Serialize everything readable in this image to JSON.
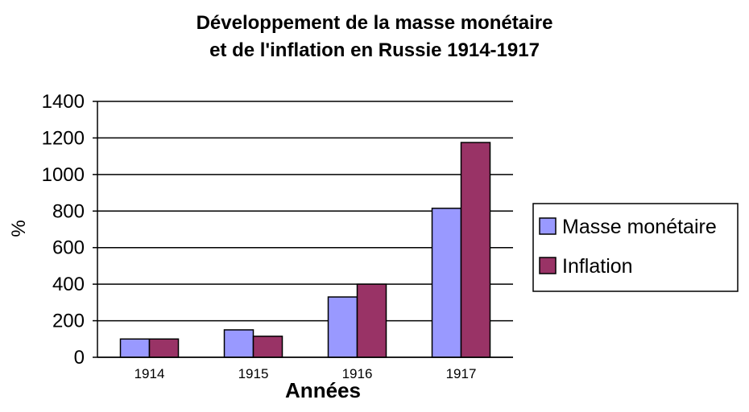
{
  "chart_data": {
    "type": "bar",
    "title": [
      "Développement de la masse monétaire",
      "et de l'inflation en Russie 1914-1917"
    ],
    "xlabel": "Années",
    "ylabel": "%",
    "categories": [
      "1914",
      "1915",
      "1916",
      "1917"
    ],
    "series": [
      {
        "name": "Masse monétaire",
        "color": "#9999ff",
        "values": [
          100,
          150,
          330,
          815
        ]
      },
      {
        "name": "Inflation",
        "color": "#993366",
        "values": [
          100,
          115,
          400,
          1175
        ]
      }
    ],
    "ylim": [
      0,
      1400
    ],
    "yticks": [
      "0",
      "200",
      "400",
      "600",
      "800",
      "1000",
      "1200",
      "1400"
    ],
    "grid": true,
    "legend": "right"
  }
}
